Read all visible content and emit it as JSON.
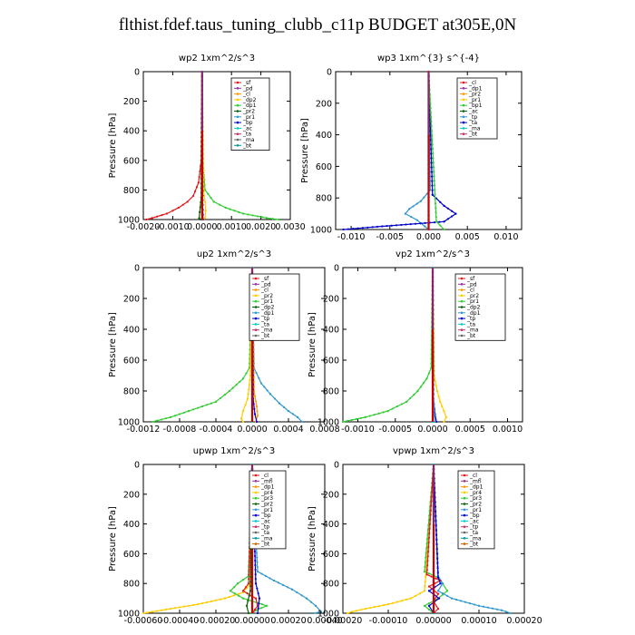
{
  "title": "flthist.fdef.taus_tuning_clubb_c11p  BUDGET at305E,0N",
  "chart_data": [
    {
      "type": "line",
      "title": "wp2   1xm^2/s^3",
      "ylabel": "Pressure  [hPa]",
      "xlim": [
        -0.002,
        0.003
      ],
      "ylim": [
        1000,
        0
      ],
      "xticks": [
        "-0.0020",
        "-0.0010",
        "0.0000",
        "0.0010",
        "0.0020",
        "0.0030"
      ],
      "xtick_values": [
        -0.002,
        -0.001,
        0.0,
        0.001,
        0.002,
        0.003
      ],
      "yticks": [
        0,
        200,
        400,
        600,
        800,
        1000
      ],
      "legend": [
        "_sf",
        "_pd",
        "_cl",
        "_dp2",
        "_dp1",
        "_pr2",
        "_pr1",
        "_bp",
        "_ac",
        "_ta",
        "_ma",
        "_bt"
      ],
      "series": [
        {
          "name": "_dp2",
          "color": "#e31a1c",
          "y": [
            0,
            600,
            750,
            840,
            880,
            920,
            960,
            990,
            1000
          ],
          "x": [
            0,
            -3e-05,
            -0.00012,
            -0.0003,
            -0.0005,
            -0.0008,
            -0.0012,
            -0.0017,
            -0.0019
          ]
        },
        {
          "name": "_ac",
          "color": "#33cc33",
          "y": [
            0,
            600,
            800,
            880,
            920,
            960,
            990,
            1000
          ],
          "x": [
            0,
            2e-05,
            0.0001,
            0.0004,
            0.0008,
            0.0014,
            0.0022,
            0.0026
          ]
        },
        {
          "name": "_pr1",
          "color": "#ffcc00",
          "y": [
            0,
            800,
            880,
            940,
            990,
            1000
          ],
          "x": [
            0,
            5e-05,
            0.0001,
            0.00012,
            0.0001,
            5e-05
          ]
        },
        {
          "name": "_bp",
          "color": "#006600",
          "y": [
            0,
            850,
            950,
            990,
            1000
          ],
          "x": [
            0,
            -3e-05,
            -8e-05,
            -0.0001,
            -5e-05
          ]
        },
        {
          "name": "_ta",
          "color": "#0000cc",
          "y": [
            0,
            900,
            1000
          ],
          "x": [
            0,
            2e-05,
            3e-05
          ]
        },
        {
          "name": "_bt",
          "color": "#00cccc",
          "y": [
            0,
            1000
          ],
          "x": [
            0,
            0
          ]
        },
        {
          "name": "_pd",
          "color": "#993399",
          "y": [
            0,
            1000
          ],
          "x": [
            0,
            0
          ]
        }
      ]
    },
    {
      "type": "line",
      "title": "wp3   1xm^{3} s^{-4}",
      "ylabel": "Pressure  [hPa]",
      "xlim": [
        -0.012,
        0.012
      ],
      "ylim": [
        1000,
        0
      ],
      "xticks": [
        "-0.010",
        "-0.005",
        "0.000",
        "0.005",
        "0.010"
      ],
      "xtick_values": [
        -0.01,
        -0.005,
        0.0,
        0.005,
        0.01
      ],
      "yticks": [
        0,
        200,
        400,
        600,
        800,
        1000
      ],
      "legend": [
        "_cl",
        "_dp1",
        "_pr2",
        "_pr1",
        "_bp1",
        "_ac",
        "_tp",
        "_ta",
        "_ma",
        "_bt"
      ],
      "series": [
        {
          "name": "_tp",
          "color": "#3399cc",
          "y": [
            0,
            750,
            820,
            870,
            900,
            940,
            980,
            1000
          ],
          "x": [
            0,
            0.0002,
            -0.001,
            -0.0025,
            -0.003,
            -0.0015,
            -0.0005,
            0
          ]
        },
        {
          "name": "_ta",
          "color": "#0000cc",
          "y": [
            0,
            780,
            850,
            900,
            950,
            980,
            1000
          ],
          "x": [
            0,
            0.0005,
            0.002,
            0.0035,
            0.002,
            -0.006,
            -0.011
          ]
        },
        {
          "name": "_ac",
          "color": "#33cc33",
          "y": [
            0,
            950,
            1000
          ],
          "x": [
            0,
            0.001,
            0.002
          ]
        },
        {
          "name": "_cl",
          "color": "#993399",
          "y": [
            0,
            1000
          ],
          "x": [
            0,
            0
          ]
        },
        {
          "name": "_dp1",
          "color": "#e31a1c",
          "y": [
            0,
            1000
          ],
          "x": [
            0,
            0
          ]
        }
      ]
    },
    {
      "type": "line",
      "title": "up2   1xm^2/s^3",
      "ylabel": "Pressure  [hPa]",
      "xlim": [
        -0.0012,
        0.0008
      ],
      "ylim": [
        1000,
        0
      ],
      "xticks": [
        "-0.0012",
        "-0.0008",
        "-0.0004",
        "0.0000",
        "0.0004",
        "0.0008"
      ],
      "xtick_values": [
        -0.0012,
        -0.0008,
        -0.0004,
        0.0,
        0.0004,
        0.0008
      ],
      "yticks": [
        0,
        200,
        400,
        600,
        800,
        1000
      ],
      "legend": [
        "_sf",
        "_pd",
        "_cl",
        "_pr2",
        "_pr1",
        "_dp2",
        "_dp1",
        "_tp",
        "_ta",
        "_ma",
        "_bt"
      ],
      "series": [
        {
          "name": "_dp1",
          "color": "#33cc33",
          "y": [
            0,
            650,
            720,
            800,
            870,
            930,
            970,
            1000
          ],
          "x": [
            0,
            -3e-05,
            -0.0001,
            -0.00025,
            -0.0004,
            -0.0007,
            -0.0009,
            -0.0011
          ]
        },
        {
          "name": "_ta",
          "color": "#3399cc",
          "y": [
            0,
            650,
            750,
            820,
            880,
            930,
            970,
            1000
          ],
          "x": [
            0,
            2e-05,
            0.0001,
            0.0002,
            0.0003,
            0.0004,
            0.0005,
            0.00055
          ]
        },
        {
          "name": "_pr2",
          "color": "#ffcc00",
          "y": [
            0,
            700,
            850,
            930,
            980,
            1000
          ],
          "x": [
            0,
            -2e-05,
            -5e-05,
            -0.0001,
            -0.00012,
            -0.0001
          ]
        },
        {
          "name": "_pr1",
          "color": "#ff9900",
          "y": [
            0,
            800,
            900,
            960,
            1000
          ],
          "x": [
            0,
            2e-05,
            5e-05,
            6e-05,
            4e-05
          ]
        },
        {
          "name": "_tp",
          "color": "#0000cc",
          "y": [
            0,
            850,
            950,
            1000
          ],
          "x": [
            0,
            1e-05,
            3e-05,
            5e-05
          ]
        },
        {
          "name": "_cl",
          "color": "#e31a1c",
          "y": [
            0,
            1000
          ],
          "x": [
            0,
            0
          ]
        },
        {
          "name": "_bt",
          "color": "#00cccc",
          "y": [
            0,
            1000
          ],
          "x": [
            0,
            0
          ]
        }
      ]
    },
    {
      "type": "line",
      "title": "vp2   1xm^2/s^3",
      "ylabel": "Pressure  [hPa]",
      "xlim": [
        -0.0012,
        0.0012
      ],
      "ylim": [
        1000,
        0
      ],
      "xticks": [
        "-0.0010",
        "-0.0005",
        "0.0000",
        "0.0005",
        "0.0010"
      ],
      "xtick_values": [
        -0.001,
        -0.0005,
        0.0,
        0.0005,
        0.001
      ],
      "yticks": [
        0,
        200,
        400,
        600,
        800,
        1000
      ],
      "legend": [
        "_sf",
        "_pd",
        "_cl",
        "_pr2",
        "_pr1",
        "_dp2",
        "_dp1",
        "_tp",
        "_ta",
        "_ma",
        "_bt"
      ],
      "series": [
        {
          "name": "_dp1",
          "color": "#33cc33",
          "y": [
            0,
            650,
            720,
            800,
            870,
            930,
            970,
            1000
          ],
          "x": [
            0,
            -2e-05,
            -8e-05,
            -0.0002,
            -0.00035,
            -0.0006,
            -0.0009,
            -0.0012
          ]
        },
        {
          "name": "_pr2",
          "color": "#ffcc00",
          "y": [
            0,
            700,
            800,
            870,
            930,
            970,
            1000
          ],
          "x": [
            0,
            2e-05,
            6e-05,
            0.0001,
            0.00015,
            0.00018,
            0.00015
          ]
        },
        {
          "name": "_tp",
          "color": "#0000cc",
          "y": [
            0,
            850,
            950,
            1000
          ],
          "x": [
            0,
            1e-05,
            3e-05,
            5e-05
          ]
        },
        {
          "name": "_ta",
          "color": "#3399cc",
          "y": [
            0,
            850,
            950,
            1000
          ],
          "x": [
            0,
            1e-05,
            2e-05,
            3e-05
          ]
        },
        {
          "name": "_cl",
          "color": "#e31a1c",
          "y": [
            0,
            1000
          ],
          "x": [
            0,
            0
          ]
        },
        {
          "name": "_bt",
          "color": "#00cccc",
          "y": [
            0,
            1000
          ],
          "x": [
            0,
            0
          ]
        }
      ]
    },
    {
      "type": "line",
      "title": "upwp   1xm^2/s^3",
      "ylabel": "Pressure  [hPa]",
      "xlim": [
        -0.0006,
        0.0004
      ],
      "ylim": [
        1000,
        0
      ],
      "xticks": [
        "-0.00060",
        "-0.00040",
        "-0.00020",
        "0.00000",
        "0.00020",
        "0.00040"
      ],
      "xtick_values": [
        -0.0006,
        -0.0004,
        -0.0002,
        0.0,
        0.0002,
        0.0004
      ],
      "yticks": [
        0,
        200,
        400,
        600,
        800,
        1000
      ],
      "legend": [
        "_cl",
        "_mfl",
        "_dp1",
        "_pr4",
        "_pr3",
        "_pr2",
        "_pr1",
        "_bp",
        "_ac",
        "_tp",
        "_ta",
        "_ma",
        "_bt"
      ],
      "series": [
        {
          "name": "_pr1",
          "color": "#ffcc00",
          "y": [
            0,
            800,
            860,
            900,
            940,
            970,
            990,
            1000
          ],
          "x": [
            0,
            -1e-05,
            -5e-05,
            -0.00015,
            -0.0003,
            -0.00045,
            -0.00055,
            -0.0006
          ]
        },
        {
          "name": "_ac",
          "color": "#33cc33",
          "y": [
            0,
            750,
            800,
            850,
            900,
            950,
            980,
            1000
          ],
          "x": [
            0,
            -2e-05,
            -8e-05,
            -0.00012,
            -5e-05,
            8e-05,
            2e-05,
            0
          ]
        },
        {
          "name": "_tp",
          "color": "#3399cc",
          "y": [
            0,
            720,
            780,
            840,
            900,
            950,
            990,
            1000
          ],
          "x": [
            0,
            3e-05,
            0.00012,
            0.00022,
            0.0003,
            0.00035,
            0.00038,
            0.00034
          ]
        },
        {
          "name": "_dp1",
          "color": "#e31a1c",
          "y": [
            0,
            800,
            850,
            900,
            950,
            1000
          ],
          "x": [
            0,
            -2e-05,
            -5e-05,
            2e-05,
            3e-05,
            0
          ]
        },
        {
          "name": "_bp",
          "color": "#006600",
          "y": [
            0,
            850,
            950,
            1000
          ],
          "x": [
            0,
            -1e-05,
            -3e-05,
            -2e-05
          ]
        },
        {
          "name": "_ta",
          "color": "#0000cc",
          "y": [
            0,
            800,
            900,
            1000
          ],
          "x": [
            0,
            2e-05,
            4e-05,
            3e-05
          ]
        },
        {
          "name": "_mfl",
          "color": "#993399",
          "y": [
            0,
            1000
          ],
          "x": [
            0,
            0
          ]
        },
        {
          "name": "_bt",
          "color": "#00cccc",
          "y": [
            0,
            1000
          ],
          "x": [
            0,
            0
          ]
        }
      ]
    },
    {
      "type": "line",
      "title": "vpwp   1xm^2/s^3",
      "ylabel": "Pressure  [hPa]",
      "xlim": [
        -0.0002,
        0.0002
      ],
      "ylim": [
        1000,
        0
      ],
      "xticks": [
        "-0.00020",
        "-0.00010",
        "0.00000",
        "0.00010",
        "0.00020"
      ],
      "xtick_values": [
        -0.0002,
        -0.0001,
        0.0,
        0.0001,
        0.0002
      ],
      "yticks": [
        0,
        200,
        400,
        600,
        800,
        1000
      ],
      "legend": [
        "_cl",
        "_mfl",
        "_dp1",
        "_pr4",
        "_pr3",
        "_pr2",
        "_pr1",
        "_bp",
        "_ac",
        "_tp",
        "_ta",
        "_ma",
        "_bt"
      ],
      "series": [
        {
          "name": "_pr1",
          "color": "#ffcc00",
          "y": [
            0,
            850,
            900,
            940,
            970,
            990,
            1000
          ],
          "x": [
            0,
            -2e-05,
            -5e-05,
            -0.0001,
            -0.00015,
            -0.00018,
            -0.00019
          ]
        },
        {
          "name": "_ac",
          "color": "#33cc33",
          "y": [
            0,
            720,
            760,
            800,
            850,
            900,
            950,
            1000
          ],
          "x": [
            0,
            -2e-05,
            1e-05,
            2e-05,
            3e-05,
            1e-05,
            -2e-05,
            0
          ]
        },
        {
          "name": "_tp",
          "color": "#3399cc",
          "y": [
            0,
            750,
            800,
            850,
            900,
            950,
            980,
            1000
          ],
          "x": [
            0,
            1e-05,
            2e-05,
            1e-05,
            4e-05,
            0.0001,
            0.00015,
            0.00017
          ]
        },
        {
          "name": "_dp1",
          "color": "#e31a1c",
          "y": [
            0,
            740,
            780,
            820,
            870,
            920,
            970,
            1000
          ],
          "x": [
            0,
            -1.5e-05,
            1.5e-05,
            -1e-05,
            1e-05,
            0,
            1e-05,
            0
          ]
        },
        {
          "name": "_ta",
          "color": "#0000cc",
          "y": [
            0,
            760,
            800,
            850,
            900,
            950,
            1000
          ],
          "x": [
            0,
            1e-05,
            1.5e-05,
            -1e-05,
            1.2e-05,
            -1e-05,
            0
          ]
        },
        {
          "name": "_mfl",
          "color": "#993399",
          "y": [
            0,
            1000
          ],
          "x": [
            0,
            0
          ]
        },
        {
          "name": "_bt",
          "color": "#00cccc",
          "y": [
            0,
            1000
          ],
          "x": [
            0,
            0
          ]
        }
      ]
    }
  ]
}
